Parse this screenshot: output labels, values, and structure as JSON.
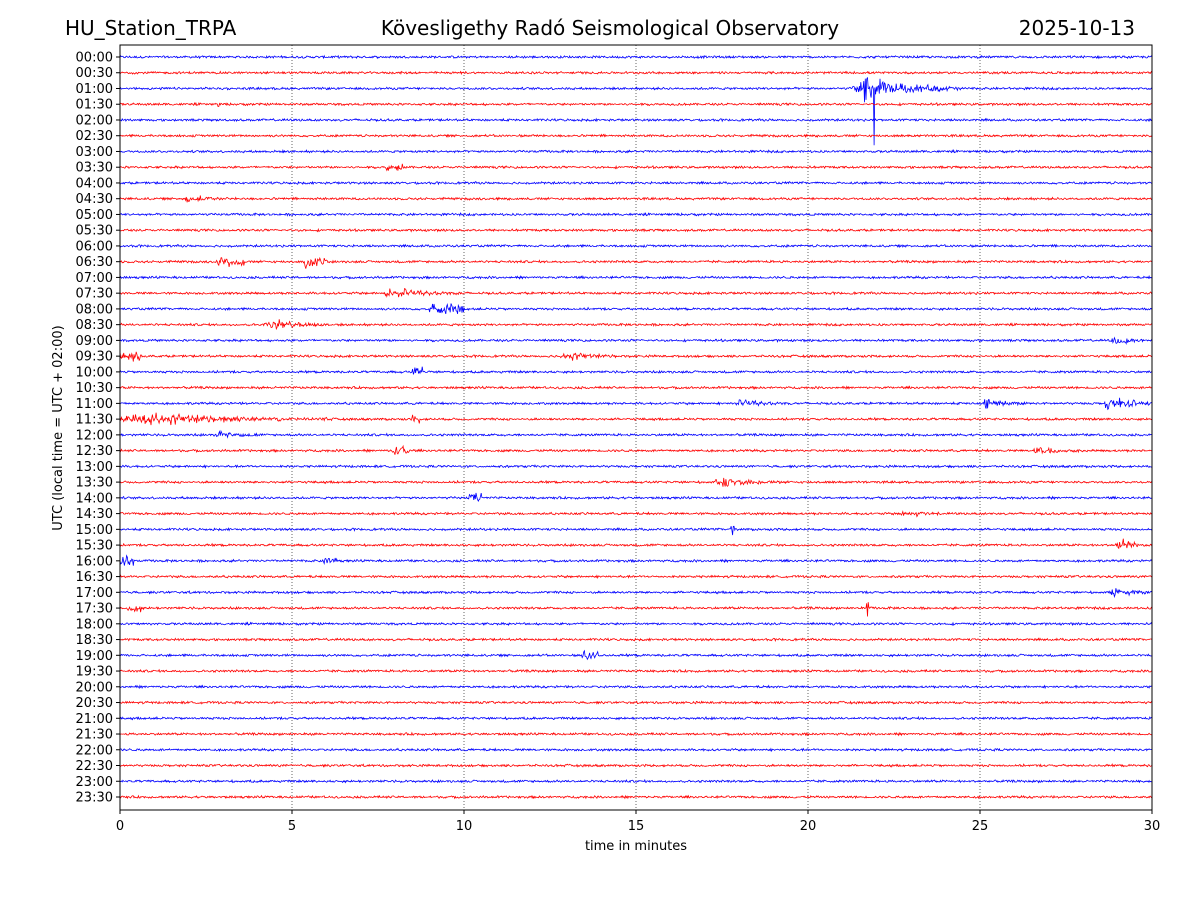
{
  "chart_data": {
    "type": "line",
    "station": "HU_Station_TRPA",
    "title": "Kövesligethy Radó Seismological Observatory",
    "date": "2025-10-13",
    "xlabel": "time in minutes",
    "ylabel": "UTC (local time = UTC + 02:00)",
    "xlim": [
      0,
      30
    ],
    "xticks": [
      0,
      5,
      10,
      15,
      20,
      25,
      30
    ],
    "grid": "vertical dotted",
    "row_labels": [
      "00:00",
      "00:30",
      "01:00",
      "01:30",
      "02:00",
      "02:30",
      "03:00",
      "03:30",
      "04:00",
      "04:30",
      "05:00",
      "05:30",
      "06:00",
      "06:30",
      "07:00",
      "07:30",
      "08:00",
      "08:30",
      "09:00",
      "09:30",
      "10:00",
      "10:30",
      "11:00",
      "11:30",
      "12:00",
      "12:30",
      "13:00",
      "13:30",
      "14:00",
      "14:30",
      "15:00",
      "15:30",
      "16:00",
      "16:30",
      "17:00",
      "17:30",
      "18:00",
      "18:30",
      "19:00",
      "19:30",
      "20:00",
      "20:30",
      "21:00",
      "21:30",
      "22:00",
      "22:30",
      "23:00",
      "23:30"
    ],
    "colors": [
      "#0000ff",
      "#ff0000"
    ],
    "noise_level": 0.07,
    "events": [
      {
        "row": 2,
        "start": 21.3,
        "end": 24.5,
        "amp": 0.9
      },
      {
        "row": 3,
        "start": 2.82,
        "end": 2.9,
        "amp": 0.35
      },
      {
        "row": 7,
        "start": 7.7,
        "end": 8.3,
        "amp": 0.25
      },
      {
        "row": 9,
        "start": 1.8,
        "end": 3.2,
        "amp": 0.25
      },
      {
        "row": 13,
        "start": 2.8,
        "end": 3.6,
        "amp": 0.3
      },
      {
        "row": 13,
        "start": 5.3,
        "end": 6.0,
        "amp": 0.45
      },
      {
        "row": 15,
        "start": 7.7,
        "end": 10.0,
        "amp": 0.4
      },
      {
        "row": 16,
        "start": 9.0,
        "end": 10.0,
        "amp": 0.35
      },
      {
        "row": 17,
        "start": 4.2,
        "end": 6.3,
        "amp": 0.35
      },
      {
        "row": 18,
        "start": 28.8,
        "end": 30,
        "amp": 0.35
      },
      {
        "row": 19,
        "start": 0,
        "end": 0.6,
        "amp": 0.3
      },
      {
        "row": 19,
        "start": 12.8,
        "end": 14.5,
        "amp": 0.3
      },
      {
        "row": 20,
        "start": 8.5,
        "end": 8.8,
        "amp": 0.35
      },
      {
        "row": 22,
        "start": 17.9,
        "end": 19.5,
        "amp": 0.3
      },
      {
        "row": 22,
        "start": 25.0,
        "end": 26.3,
        "amp": 0.4
      },
      {
        "row": 22,
        "start": 28.6,
        "end": 30,
        "amp": 0.6
      },
      {
        "row": 23,
        "start": 0,
        "end": 6.2,
        "amp": 0.45
      },
      {
        "row": 23,
        "start": 8.5,
        "end": 8.7,
        "amp": 0.35
      },
      {
        "row": 24,
        "start": 2.8,
        "end": 4.0,
        "amp": 0.3
      },
      {
        "row": 25,
        "start": 7.9,
        "end": 8.4,
        "amp": 0.3
      },
      {
        "row": 25,
        "start": 26.5,
        "end": 28.0,
        "amp": 0.25
      },
      {
        "row": 27,
        "start": 17.3,
        "end": 19.2,
        "amp": 0.35
      },
      {
        "row": 28,
        "start": 10.1,
        "end": 10.5,
        "amp": 0.35
      },
      {
        "row": 29,
        "start": 22.7,
        "end": 23.8,
        "amp": 0.3
      },
      {
        "row": 30,
        "start": 17.75,
        "end": 17.85,
        "amp": 0.4
      },
      {
        "row": 31,
        "start": 28.9,
        "end": 30,
        "amp": 0.45
      },
      {
        "row": 32,
        "start": 0,
        "end": 0.4,
        "amp": 0.45
      },
      {
        "row": 32,
        "start": 5.9,
        "end": 6.3,
        "amp": 0.3
      },
      {
        "row": 34,
        "start": 28.8,
        "end": 30,
        "amp": 0.35
      },
      {
        "row": 35,
        "start": 0.2,
        "end": 0.6,
        "amp": 0.25
      },
      {
        "row": 35,
        "start": 21.65,
        "end": 21.75,
        "amp": 0.5
      },
      {
        "row": 38,
        "start": 13.4,
        "end": 13.9,
        "amp": 0.3
      }
    ],
    "spikes": [
      {
        "row": 2,
        "t": 21.92,
        "up": 2.0,
        "down": 3.6
      }
    ]
  }
}
